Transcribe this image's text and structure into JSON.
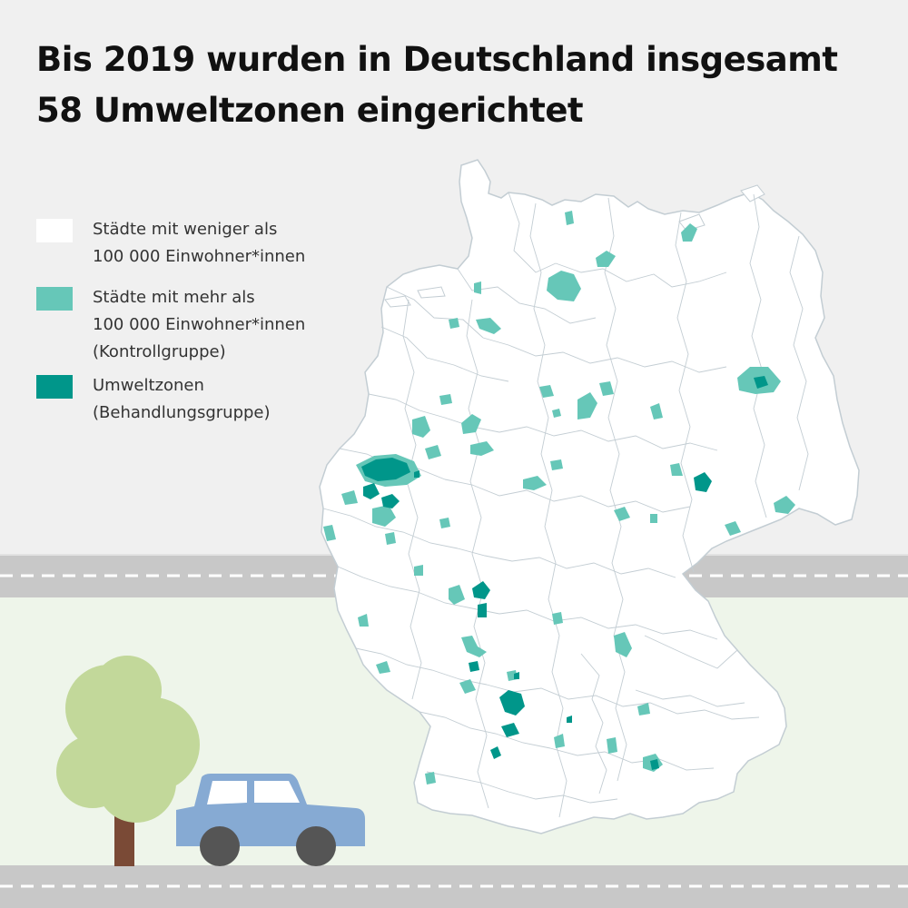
{
  "title": {
    "line1": "Bis 2019 wurden in Deutschland insgesamt",
    "line2": "58 Umweltzonen eingerichtet"
  },
  "legend": [
    {
      "lines": [
        "Städte mit weniger als",
        "100 000 Einwohner*innen"
      ],
      "color": "#ffffff"
    },
    {
      "lines": [
        "Städte mit mehr als",
        "100 000 Einwohner*innen",
        "(Kontrollgruppe)"
      ],
      "color": "#66c7b8"
    },
    {
      "lines": [
        "Umweltzonen",
        "(Behandlungsgruppe)"
      ],
      "color": "#00968a"
    }
  ],
  "colors": {
    "background": "#f0f0f0",
    "ground": "#eef5ea",
    "road": "#c8c8c8",
    "road_marking": "#ffffff",
    "map_fill": "#ffffff",
    "district_border": "#c3cdd3",
    "control_group": "#66c7b8",
    "treatment_group": "#00968a",
    "tree_crown": "#c2d89a",
    "tree_trunk": "#7a4a36",
    "car_body": "#86aad3",
    "car_window": "#ffffff",
    "wheel": "#555555"
  },
  "icons": [
    "tree-icon",
    "car-icon"
  ]
}
